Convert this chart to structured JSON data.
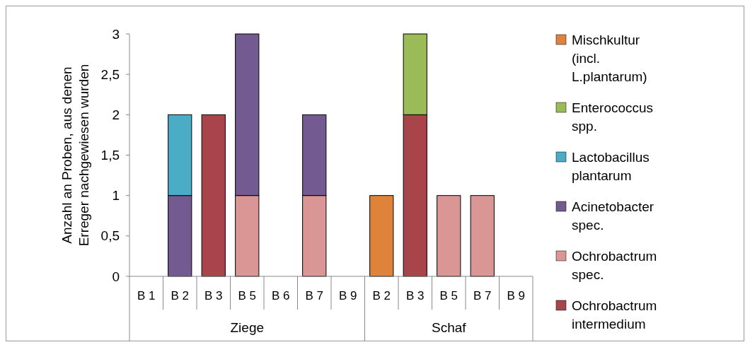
{
  "chart_data": {
    "type": "bar",
    "stacked": true,
    "ylabel": "Anzahl an Proben, aus denen Erreger nachgewiesen wurden",
    "categories": [
      "B 1",
      "B 2",
      "B 3",
      "B 5",
      "B 6",
      "B 7",
      "B 9",
      "B 2",
      "B 3",
      "B 5",
      "B 7",
      "B 9"
    ],
    "annotations": [
      "Ziege",
      "Schaf"
    ],
    "series": [
      {
        "name": "Ochrobactrum intermedium",
        "color": "#a9444a",
        "values": [
          null,
          null,
          2,
          null,
          null,
          null,
          null,
          null,
          2,
          null,
          null,
          null
        ]
      },
      {
        "name": "Ochrobactrum spec.",
        "color": "#d99694",
        "values": [
          null,
          null,
          null,
          1,
          null,
          1,
          null,
          null,
          null,
          1,
          1,
          null
        ]
      },
      {
        "name": "Acinetobacter spec.",
        "color": "#735a91",
        "values": [
          null,
          1,
          null,
          2,
          null,
          1,
          null,
          null,
          null,
          null,
          null,
          null
        ]
      },
      {
        "name": "Lactobacillus plantarum",
        "color": "#4bacc6",
        "values": [
          null,
          1,
          null,
          null,
          null,
          null,
          null,
          null,
          null,
          null,
          null,
          null
        ]
      },
      {
        "name": "Enterococcus spp.",
        "color": "#9bbb59",
        "values": [
          null,
          null,
          null,
          null,
          null,
          null,
          null,
          null,
          1,
          null,
          null,
          null
        ]
      },
      {
        "name": "Mischkultur (incl. L.plantarum)",
        "color": "#e0833a",
        "values": [
          null,
          null,
          null,
          null,
          null,
          null,
          null,
          1,
          null,
          null,
          null,
          null
        ]
      }
    ],
    "ylim": [
      0,
      3
    ],
    "yticks": [
      0,
      {
        "value": 0.5,
        "label": "0,5"
      },
      1,
      {
        "value": 1.5,
        "label": "1,5"
      },
      2,
      {
        "value": 2.5,
        "label": "2,5"
      },
      3
    ],
    "legend": "right"
  }
}
